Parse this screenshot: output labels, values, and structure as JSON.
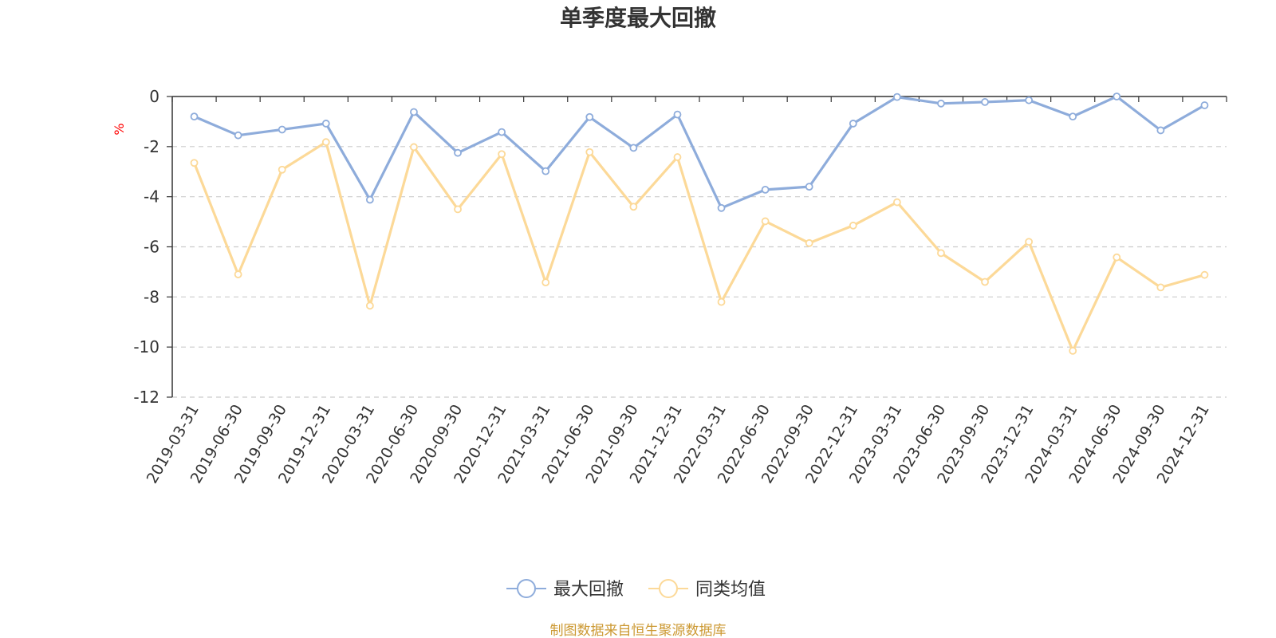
{
  "chart_data": {
    "type": "line",
    "title": "单季度最大回撤",
    "ylabel": "%",
    "ylim": [
      -12,
      0
    ],
    "yticks": [
      0,
      -2,
      -4,
      -6,
      -8,
      -10,
      -12
    ],
    "categories": [
      "2019-03-31",
      "2019-06-30",
      "2019-09-30",
      "2019-12-31",
      "2020-03-31",
      "2020-06-30",
      "2020-09-30",
      "2020-12-31",
      "2021-03-31",
      "2021-06-30",
      "2021-09-30",
      "2021-12-31",
      "2022-03-31",
      "2022-06-30",
      "2022-09-30",
      "2022-12-31",
      "2023-03-31",
      "2023-06-30",
      "2023-09-30",
      "2023-12-31",
      "2024-03-31",
      "2024-06-30",
      "2024-09-30",
      "2024-12-31"
    ],
    "series": [
      {
        "name": "最大回撤",
        "color": "#8eacdb",
        "values": [
          -0.8,
          -1.55,
          -1.32,
          -1.08,
          -4.12,
          -0.62,
          -2.25,
          -1.42,
          -2.98,
          -0.82,
          -2.05,
          -0.72,
          -4.45,
          -3.72,
          -3.6,
          -1.08,
          -0.02,
          -0.28,
          -0.22,
          -0.15,
          -0.8,
          0.0,
          -1.35,
          -0.35
        ]
      },
      {
        "name": "同类均值",
        "color": "#fcd998",
        "values": [
          -2.65,
          -7.1,
          -2.92,
          -1.82,
          -8.35,
          -2.02,
          -4.5,
          -2.3,
          -7.42,
          -2.22,
          -4.4,
          -2.42,
          -8.2,
          -4.98,
          -5.85,
          -5.15,
          -4.22,
          -6.25,
          -7.4,
          -5.8,
          -10.15,
          -6.42,
          -7.62,
          -7.12
        ]
      }
    ],
    "grid": true,
    "legend": "bottom-center"
  },
  "footer": "制图数据来自恒生聚源数据库",
  "colors": {
    "title": "#333333",
    "axis": "#333333",
    "grid": "#cccccc",
    "ylabel": "#ff0000",
    "footer": "#cc9933"
  }
}
